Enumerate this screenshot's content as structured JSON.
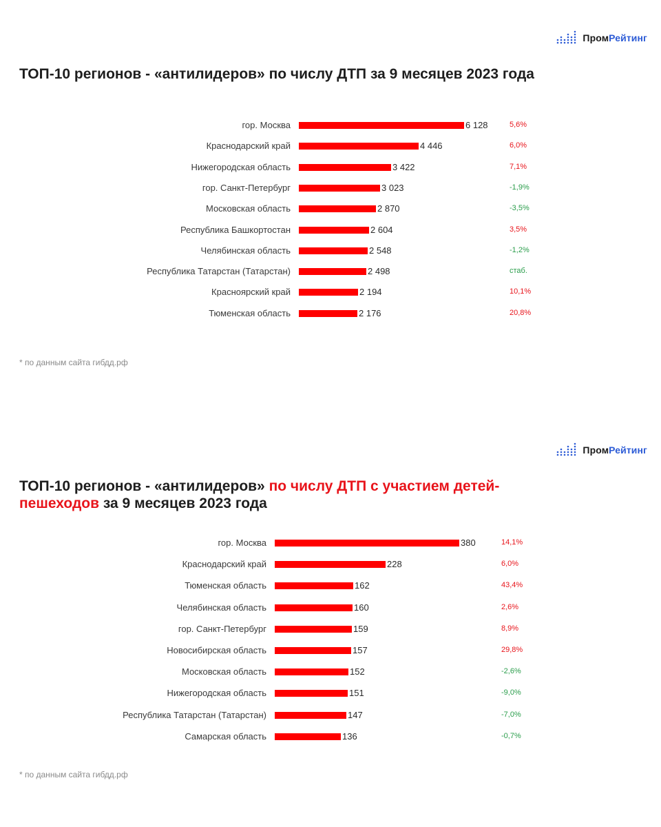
{
  "brand": {
    "name_part1": "Пром",
    "name_part2": "Рейтинг",
    "accent_color": "#2c5bd6"
  },
  "colors": {
    "bar": "#ff0000",
    "increase": "#e8141b",
    "decrease": "#2a9d4b"
  },
  "panel1": {
    "title": "ТОП-10 регионов - «антилидеров» по числу ДТП за 9 месяцев 2023 года",
    "footnote": "* по данным сайта гибдд.рф"
  },
  "panel2": {
    "title_part1": "ТОП-10 регионов - «антилидеров» ",
    "title_highlight": "по числу ДТП с участием детей-пешеходов",
    "title_part2": " за 9 месяцев 2023 года",
    "footnote": "* по данным сайта гибдд.рф"
  },
  "chart_data": [
    {
      "type": "bar",
      "orientation": "horizontal",
      "title": "ТОП-10 регионов - «антилидеров» по числу ДТП за 9 месяцев 2023 года",
      "categories": [
        "гор. Москва",
        "Краснодарский край",
        "Нижегородская область",
        "гор. Санкт-Петербург",
        "Московская область",
        "Республика Башкортостан",
        "Челябинская область",
        "Республика Татарстан (Татарстан)",
        "Красноярский край",
        "Тюменская область"
      ],
      "values": [
        6128,
        4446,
        3422,
        3023,
        2870,
        2604,
        2548,
        2498,
        2194,
        2176
      ],
      "value_labels": [
        "6 128",
        "4 446",
        "3 422",
        "3 023",
        "2 870",
        "2 604",
        "2 548",
        "2 498",
        "2 194",
        "2 176"
      ],
      "changes": [
        "5,6%",
        "6,0%",
        "7,1%",
        "-1,9%",
        "-3,5%",
        "3,5%",
        "-1,2%",
        "стаб.",
        "10,1%",
        "20,8%"
      ],
      "change_direction": [
        "up",
        "up",
        "up",
        "down",
        "down",
        "up",
        "down",
        "down",
        "up",
        "up"
      ],
      "xlim": [
        0,
        6128
      ],
      "grid": false
    },
    {
      "type": "bar",
      "orientation": "horizontal",
      "title": "ТОП-10 регионов - «антилидеров» по числу ДТП с участием детей-пешеходов за 9 месяцев 2023 года",
      "categories": [
        "гор. Москва",
        "Краснодарский край",
        "Тюменская область",
        "Челябинская область",
        "гор. Санкт-Петербург",
        "Новосибирская область",
        "Московская область",
        "Нижегородская область",
        "Республика Татарстан (Татарстан)",
        "Самарская область"
      ],
      "values": [
        380,
        228,
        162,
        160,
        159,
        157,
        152,
        151,
        147,
        136
      ],
      "value_labels": [
        "380",
        "228",
        "162",
        "160",
        "159",
        "157",
        "152",
        "151",
        "147",
        "136"
      ],
      "changes": [
        "14,1%",
        "6,0%",
        "43,4%",
        "2,6%",
        "8,9%",
        "29,8%",
        "-2,6%",
        "-9,0%",
        "-7,0%",
        "-0,7%"
      ],
      "change_direction": [
        "up",
        "up",
        "up",
        "up",
        "up",
        "up",
        "down",
        "down",
        "down",
        "down"
      ],
      "xlim": [
        0,
        380
      ],
      "grid": false
    }
  ]
}
